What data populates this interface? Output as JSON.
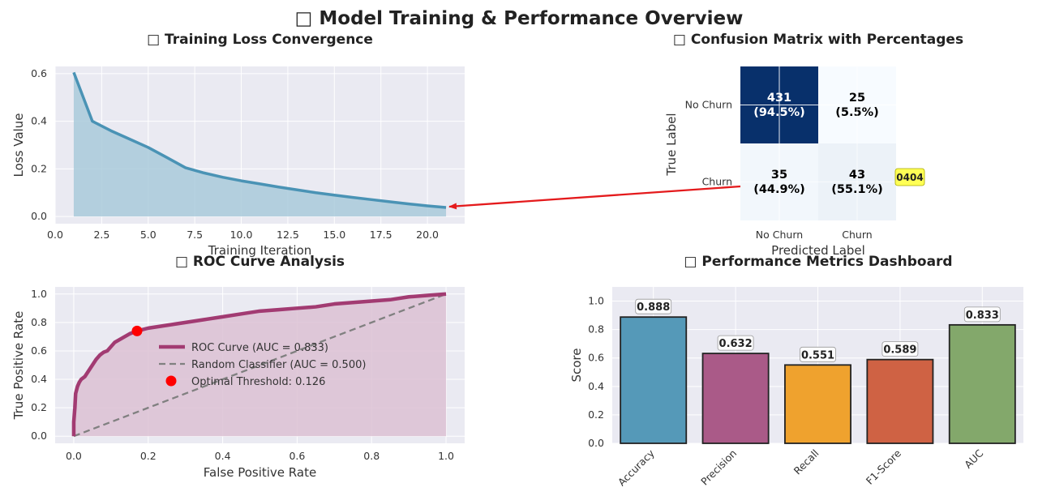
{
  "suptitle": "□ Model Training & Performance Overview",
  "colors": {
    "panel_bg": "#EAEAF2",
    "loss_line": "#4A93B5",
    "loss_fill": "#A9CADB",
    "roc_line": "#A23B72",
    "roc_fill": "#DCC1D4",
    "random_line": "#808080",
    "optimal_point": "#FF0000",
    "arrow": "#E41A1C",
    "cm_dark": "#08306B",
    "cm_light": "#F7FBFF",
    "annotation_bg": "#FFFF55"
  },
  "annotation": {
    "label": "0404"
  },
  "chart_data": [
    {
      "id": "loss",
      "type": "area",
      "title": "□ Training Loss Convergence",
      "xlabel": "Training Iteration",
      "ylabel": "Loss Value",
      "xlim": [
        0,
        22
      ],
      "ylim": [
        -0.03,
        0.63
      ],
      "xticks": [
        "0.0",
        "2.5",
        "5.0",
        "7.5",
        "10.0",
        "12.5",
        "15.0",
        "17.5",
        "20.0"
      ],
      "yticks": [
        "0.0",
        "0.2",
        "0.4",
        "0.6"
      ],
      "grid": true,
      "x": [
        1,
        2,
        3,
        4,
        5,
        6,
        7,
        8,
        9,
        10,
        11,
        12,
        13,
        14,
        15,
        16,
        17,
        18,
        19,
        20,
        21
      ],
      "values": [
        0.605,
        0.4,
        0.36,
        0.325,
        0.29,
        0.248,
        0.205,
        0.183,
        0.165,
        0.15,
        0.137,
        0.124,
        0.112,
        0.1,
        0.09,
        0.08,
        0.071,
        0.062,
        0.053,
        0.045,
        0.038
      ]
    },
    {
      "id": "confusion",
      "type": "heatmap",
      "title": "□ Confusion Matrix with Percentages",
      "xlabel": "Predicted Label",
      "ylabel": "True Label",
      "row_labels": [
        "No Churn",
        "Churn"
      ],
      "col_labels": [
        "No Churn",
        "Churn"
      ],
      "values": [
        [
          431,
          25
        ],
        [
          35,
          43
        ]
      ],
      "cell_text": [
        [
          "431",
          "(94.5%)",
          "25",
          "(5.5%)"
        ],
        [
          "35",
          "(44.9%)",
          "43",
          "(55.1%)"
        ]
      ],
      "intensity": [
        [
          1.0,
          0.0
        ],
        [
          0.02,
          0.045
        ]
      ]
    },
    {
      "id": "roc",
      "type": "line",
      "title": "□ ROC Curve Analysis",
      "xlabel": "False Positive Rate",
      "ylabel": "True Positive Rate",
      "xlim": [
        -0.05,
        1.05
      ],
      "ylim": [
        -0.05,
        1.05
      ],
      "xticks": [
        "0.0",
        "0.2",
        "0.4",
        "0.6",
        "0.8",
        "1.0"
      ],
      "yticks": [
        "0.0",
        "0.2",
        "0.4",
        "0.6",
        "0.8",
        "1.0"
      ],
      "legend": "center-right",
      "grid": true,
      "series": [
        {
          "name": "ROC Curve (AUC = 0.833)",
          "x": [
            0,
            0,
            0.003,
            0.005,
            0.01,
            0.015,
            0.02,
            0.03,
            0.04,
            0.05,
            0.06,
            0.07,
            0.08,
            0.09,
            0.1,
            0.11,
            0.13,
            0.15,
            0.17,
            0.2,
            0.25,
            0.3,
            0.35,
            0.4,
            0.45,
            0.5,
            0.55,
            0.6,
            0.65,
            0.7,
            0.75,
            0.8,
            0.85,
            0.9,
            0.95,
            1.0
          ],
          "y": [
            0,
            0.1,
            0.2,
            0.3,
            0.35,
            0.38,
            0.4,
            0.42,
            0.46,
            0.5,
            0.54,
            0.57,
            0.59,
            0.6,
            0.63,
            0.66,
            0.69,
            0.72,
            0.74,
            0.76,
            0.78,
            0.8,
            0.82,
            0.84,
            0.86,
            0.88,
            0.89,
            0.9,
            0.91,
            0.93,
            0.94,
            0.95,
            0.96,
            0.98,
            0.99,
            1.0
          ]
        },
        {
          "name": "Random Classifier (AUC = 0.500)",
          "x": [
            0,
            1
          ],
          "y": [
            0,
            1
          ]
        }
      ],
      "optimal_point": {
        "name": "Optimal Threshold: 0.126",
        "x": 0.17,
        "y": 0.74
      }
    },
    {
      "id": "metrics",
      "type": "bar",
      "title": "□ Performance Metrics Dashboard",
      "ylabel": "Score",
      "ylim": [
        0,
        1.1
      ],
      "yticks": [
        "0.0",
        "0.2",
        "0.4",
        "0.6",
        "0.8",
        "1.0"
      ],
      "categories": [
        "Accuracy",
        "Precision",
        "Recall",
        "F1-Score",
        "AUC"
      ],
      "values": [
        0.888,
        0.632,
        0.551,
        0.589,
        0.833
      ],
      "labels": [
        "0.888",
        "0.632",
        "0.551",
        "0.589",
        "0.833"
      ],
      "bar_colors": [
        "#5599B8",
        "#AA5A88",
        "#EFA22E",
        "#CF6244",
        "#83A86B"
      ]
    }
  ]
}
